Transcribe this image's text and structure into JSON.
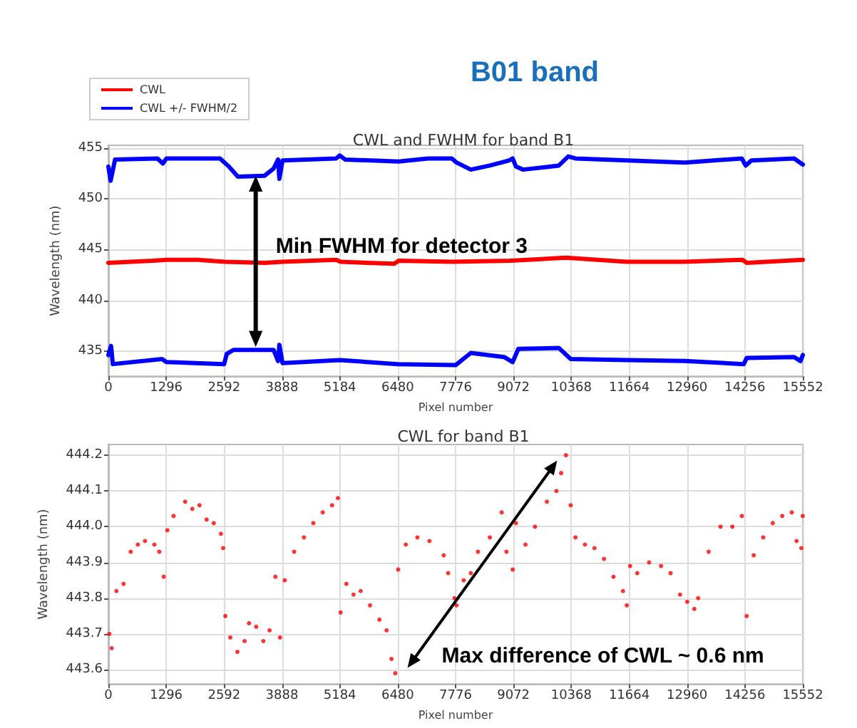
{
  "chart_data": [
    {
      "type": "line",
      "title": "B01 band",
      "subtitle": "CWL and FWHM for band B1",
      "xlabel": "Pixel number",
      "ylabel": "Wavelength (nm)",
      "xlim": [
        0,
        15552
      ],
      "xticks": [
        0,
        1296,
        2592,
        3888,
        5184,
        6480,
        7776,
        9072,
        10368,
        11664,
        12960,
        14256,
        15552
      ],
      "ylim": [
        432.5,
        455.3
      ],
      "yticks": [
        435,
        440,
        445,
        450,
        455
      ],
      "grid": true,
      "legend": "top left",
      "marker": "none",
      "line_style": "solid",
      "annotations": [
        "Min FWHM for detector 3"
      ],
      "series": [
        {
          "name": "CWL",
          "color": "#ff0000",
          "x": [
            0,
            1000,
            1300,
            2000,
            2600,
            3500,
            3900,
            5100,
            5200,
            6400,
            6500,
            7700,
            9000,
            10250,
            11600,
            12900,
            14200,
            14300,
            15552
          ],
          "values": [
            443.7,
            443.9,
            444.0,
            444.0,
            443.8,
            443.7,
            443.8,
            444.0,
            443.8,
            443.6,
            443.9,
            443.8,
            443.9,
            444.2,
            443.8,
            443.8,
            444.0,
            443.7,
            444.0
          ]
        },
        {
          "name": "CWL +/- FWHM/2",
          "color": "#0000ff",
          "x": [
            0,
            50,
            150,
            1100,
            1220,
            1300,
            2500,
            2700,
            2900,
            3500,
            3700,
            3800,
            3830,
            3900,
            5100,
            5180,
            5300,
            6500,
            7158,
            7691,
            7797,
            8117,
            8543,
            8969,
            9054,
            9128,
            9288,
            10087,
            10300,
            10460,
            11632,
            12909,
            14187,
            14272,
            14400,
            15358,
            15552
          ],
          "values": [
            453.2,
            451.8,
            453.9,
            454.0,
            453.5,
            454.0,
            454.0,
            453.2,
            452.2,
            452.3,
            453.0,
            453.9,
            452.0,
            453.8,
            454.0,
            454.3,
            453.9,
            453.7,
            454.0,
            454.0,
            453.6,
            452.9,
            453.3,
            453.8,
            454.0,
            453.2,
            452.9,
            453.3,
            454.2,
            454.0,
            453.8,
            453.6,
            454.0,
            453.3,
            453.8,
            454.0,
            453.4
          ]
        },
        {
          "color": "#0000ff",
          "x": [
            0,
            60,
            100,
            1200,
            1300,
            2592,
            2650,
            2800,
            3700,
            3800,
            3830,
            3900,
            5184,
            6480,
            7776,
            8117,
            8862,
            9054,
            9181,
            10087,
            10353,
            11632,
            12909,
            14230,
            14294,
            15358,
            15500,
            15552
          ],
          "values": [
            434.6,
            435.5,
            433.7,
            434.2,
            433.9,
            433.7,
            434.7,
            435.1,
            435.1,
            434.0,
            435.6,
            433.8,
            434.1,
            433.7,
            433.6,
            434.8,
            434.4,
            433.9,
            435.2,
            435.3,
            434.2,
            434.1,
            434.0,
            433.7,
            434.3,
            434.4,
            434.0,
            434.6
          ]
        }
      ]
    },
    {
      "type": "scatter",
      "title": "CWL for band B1",
      "xlabel": "Pixel number",
      "ylabel": "Wavelength (nm)",
      "xlim": [
        0,
        15552
      ],
      "xticks": [
        0,
        1296,
        2592,
        3888,
        5184,
        6480,
        7776,
        9072,
        10368,
        11664,
        12960,
        14256,
        15552
      ],
      "ylim": [
        443.56,
        444.23
      ],
      "yticks": [
        443.6,
        443.7,
        443.8,
        443.9,
        {
          "value": 444,
          "label": "444.0"
        },
        444.1,
        444.2
      ],
      "grid": true,
      "marker": "circle",
      "annotations": [
        "Max difference of CWL ~ 0.6 nm"
      ],
      "series": [
        {
          "color": "#ff0000",
          "x": [
            20,
            75,
            180,
            340,
            500,
            660,
            820,
            1030,
            1140,
            1240,
            1320,
            1460,
            1720,
            1880,
            2040,
            2200,
            2360,
            2520,
            2570,
            2620,
            2730,
            2890,
            3050,
            3150,
            3310,
            3470,
            3610,
            3740,
            3845,
            3950,
            4160,
            4380,
            4590,
            4800,
            5010,
            5140,
            5200,
            5330,
            5490,
            5650,
            5860,
            6070,
            6230,
            6340,
            6425,
            6490,
            6660,
            6920,
            7190,
            7510,
            7610,
            7750,
            7797,
            7957,
            8117,
            8277,
            8543,
            8809,
            8915,
            9054,
            9128,
            9341,
            9554,
            9820,
            10034,
            10140,
            10247,
            10353,
            10460,
            10673,
            10886,
            11099,
            11312,
            11525,
            11610,
            11684,
            11844,
            12110,
            12377,
            12590,
            12803,
            12963,
            13122,
            13208,
            13442,
            13708,
            13974,
            14187,
            14294,
            14453,
            14666,
            14879,
            15092,
            15305,
            15412,
            15518,
            15550
          ],
          "values": [
            443.7,
            443.66,
            443.82,
            443.84,
            443.93,
            443.95,
            443.96,
            443.95,
            443.93,
            443.86,
            443.99,
            444.03,
            444.07,
            444.05,
            444.06,
            444.02,
            444.01,
            443.98,
            443.94,
            443.75,
            443.69,
            443.65,
            443.68,
            443.73,
            443.72,
            443.68,
            443.71,
            443.86,
            443.69,
            443.85,
            443.93,
            443.97,
            444.01,
            444.04,
            444.06,
            444.08,
            443.76,
            443.84,
            443.81,
            443.82,
            443.78,
            443.74,
            443.71,
            443.63,
            443.59,
            443.88,
            443.95,
            443.97,
            443.96,
            443.92,
            443.87,
            443.8,
            443.78,
            443.85,
            443.87,
            443.93,
            443.97,
            444.04,
            443.93,
            443.88,
            444.01,
            443.95,
            444.0,
            444.07,
            444.1,
            444.15,
            444.2,
            444.06,
            443.97,
            443.95,
            443.94,
            443.91,
            443.86,
            443.82,
            443.78,
            443.89,
            443.87,
            443.9,
            443.89,
            443.87,
            443.81,
            443.79,
            443.77,
            443.8,
            443.93,
            444.0,
            444.0,
            444.03,
            443.75,
            443.92,
            443.97,
            444.01,
            444.03,
            444.04,
            443.96,
            443.94,
            444.03
          ]
        }
      ]
    }
  ]
}
